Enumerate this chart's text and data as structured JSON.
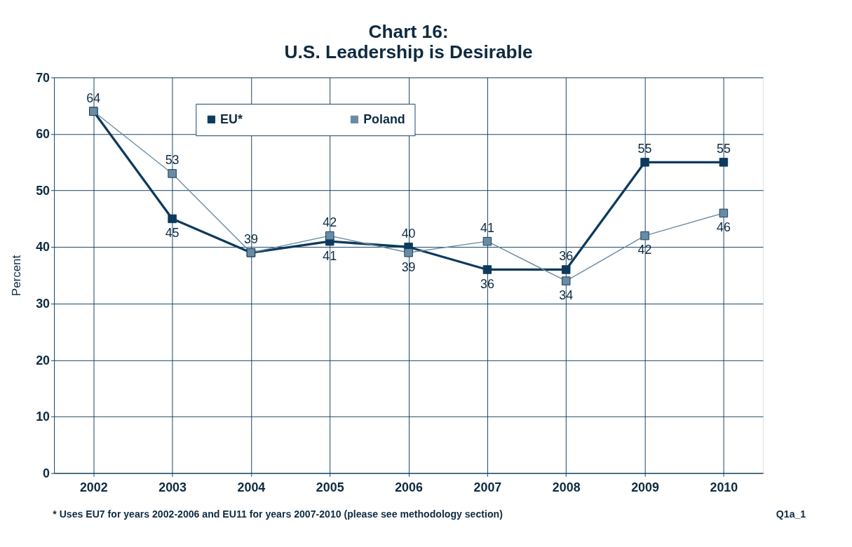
{
  "chart_data": {
    "type": "line",
    "title": "Chart 16:",
    "subtitle": "U.S. Leadership is Desirable",
    "ylabel": "Percent",
    "categories": [
      "2002",
      "2003",
      "2004",
      "2005",
      "2006",
      "2007",
      "2008",
      "2009",
      "2010"
    ],
    "series": [
      {
        "name": "EU*",
        "color": "#0d3a5c",
        "values": [
          64,
          45,
          39,
          41,
          40,
          36,
          36,
          55,
          55
        ],
        "value_labels": [
          "64",
          "45",
          "39",
          "41",
          "40",
          "36",
          "36",
          "55",
          "55"
        ]
      },
      {
        "name": "Poland",
        "color": "#6a8ba3",
        "values": [
          64,
          53,
          39,
          42,
          39,
          41,
          34,
          42,
          46
        ],
        "value_labels": [
          null,
          "53",
          null,
          "42",
          "39",
          "41",
          "34",
          "42",
          "46"
        ]
      }
    ],
    "ylim": [
      0,
      70
    ],
    "yticks": [
      0,
      10,
      20,
      30,
      40,
      50,
      60,
      70
    ],
    "grid": true,
    "legend": "top",
    "marker": "square",
    "annotations": [
      "* Uses EU7 for years 2002-2006 and EU11 for years 2007-2010 (please see methodology section)",
      "Q1a_1"
    ]
  }
}
